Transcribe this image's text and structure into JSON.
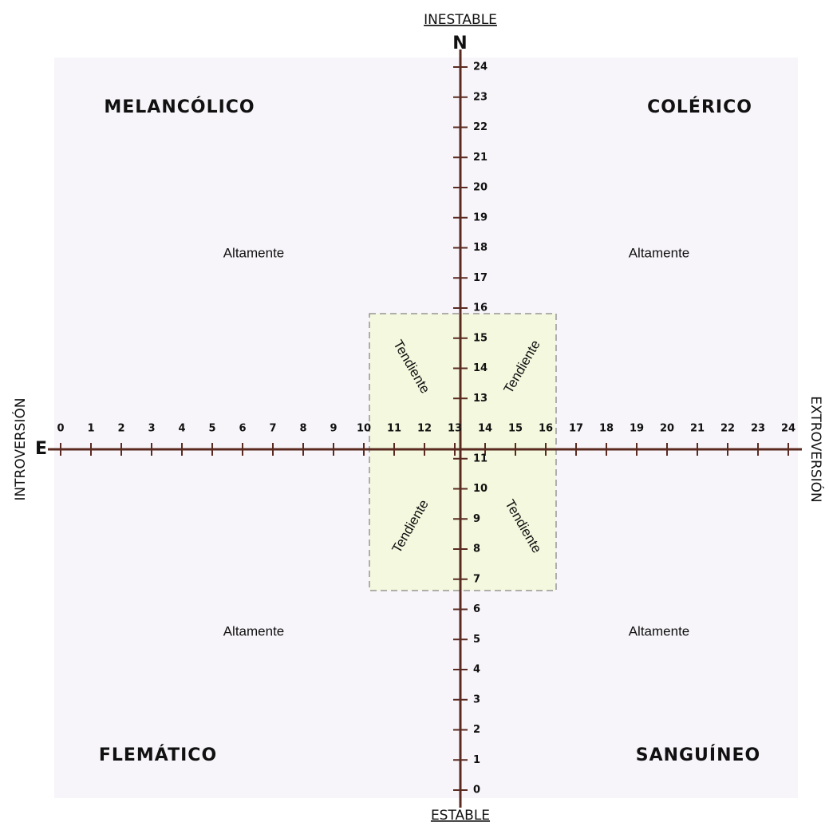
{
  "top_label": "INESTABLE",
  "top_letter": "N",
  "bottom_label": "ESTABLE",
  "left_letter": "E",
  "left_label": "INTROVERSIÓN",
  "right_label": "EXTROVERSIÓN",
  "x_ticks": [
    0,
    1,
    2,
    3,
    4,
    5,
    6,
    7,
    8,
    9,
    10,
    11,
    12,
    13,
    14,
    15,
    16,
    17,
    18,
    19,
    20,
    21,
    22,
    23,
    24
  ],
  "y_ticks": [
    0,
    1,
    2,
    3,
    4,
    5,
    6,
    7,
    8,
    9,
    10,
    11,
    13,
    14,
    15,
    16,
    17,
    18,
    19,
    20,
    21,
    22,
    23,
    24
  ],
  "quadrants": [
    {
      "name": "MELANCÓLICO",
      "level": "Altamente",
      "tendency": "Tendiente"
    },
    {
      "name": "COLÉRICO",
      "level": "Altamente",
      "tendency": "Tendiente"
    },
    {
      "name": "FLEMÁTICO",
      "level": "Altamente",
      "tendency": "Tendiente"
    },
    {
      "name": "SANGUÍNEO",
      "level": "Altamente",
      "tendency": "Tendiente"
    }
  ]
}
